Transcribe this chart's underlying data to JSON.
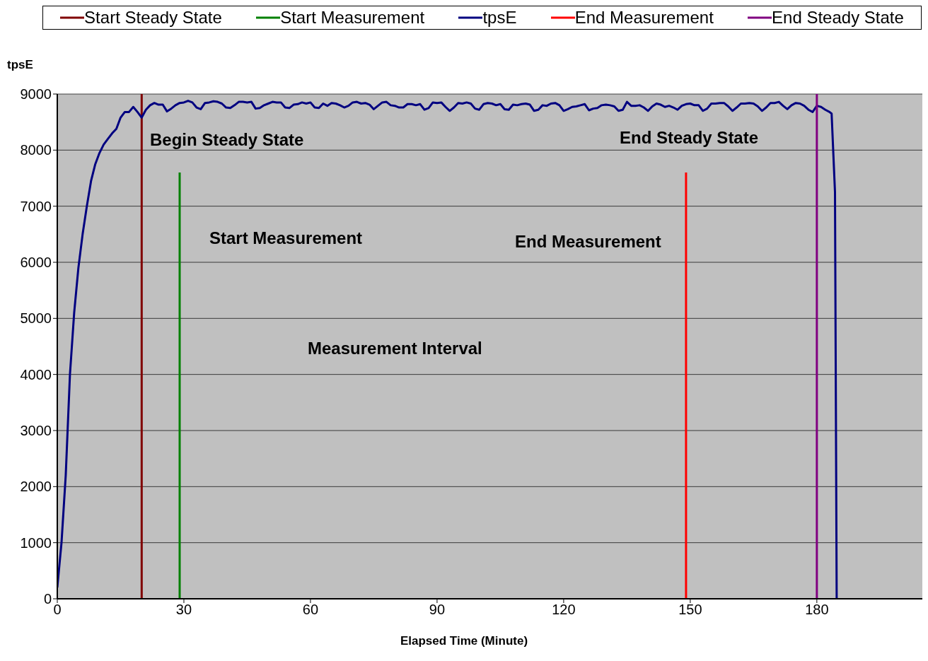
{
  "chart_data": {
    "type": "line",
    "xlabel": "Elapsed Time (Minute)",
    "ylabel": "tpsE",
    "xlim": [
      0,
      205
    ],
    "xticks": [
      0,
      30,
      60,
      90,
      120,
      150,
      180
    ],
    "ylim": [
      0,
      9000
    ],
    "yticks": [
      0,
      1000,
      2000,
      3000,
      4000,
      5000,
      6000,
      7000,
      8000,
      9000
    ],
    "grid": "y",
    "legend": "top",
    "marker": "none",
    "line_style": "solid",
    "series": [
      {
        "name": "Start Steady State",
        "color": "#800000",
        "x": [
          20,
          20
        ],
        "values": [
          0,
          9000
        ]
      },
      {
        "name": "Start Measurement",
        "color": "#008000",
        "x": [
          29,
          29
        ],
        "values": [
          0,
          7600
        ]
      },
      {
        "name": "tpsE",
        "color": "#000080",
        "x": [
          0,
          1,
          2,
          3,
          4,
          5,
          6,
          7,
          8,
          9,
          10,
          11,
          12,
          13,
          14,
          15,
          16,
          17,
          18,
          19,
          20,
          21,
          22,
          23,
          24,
          25,
          26,
          27,
          28,
          29,
          30,
          31,
          32,
          33,
          34,
          35,
          36,
          37,
          38,
          39,
          40,
          41,
          42,
          43,
          44,
          45,
          46,
          47,
          48,
          49,
          50,
          51,
          52,
          53,
          54,
          55,
          56,
          57,
          58,
          59,
          60,
          61,
          62,
          63,
          64,
          65,
          66,
          67,
          68,
          69,
          70,
          71,
          72,
          73,
          74,
          75,
          76,
          77,
          78,
          79,
          80,
          81,
          82,
          83,
          84,
          85,
          86,
          87,
          88,
          89,
          90,
          91,
          92,
          93,
          94,
          95,
          96,
          97,
          98,
          99,
          100,
          101,
          102,
          103,
          104,
          105,
          106,
          107,
          108,
          109,
          110,
          111,
          112,
          113,
          114,
          115,
          116,
          117,
          118,
          119,
          120,
          121,
          122,
          123,
          124,
          125,
          126,
          127,
          128,
          129,
          130,
          131,
          132,
          133,
          134,
          135,
          136,
          137,
          138,
          139,
          140,
          141,
          142,
          143,
          144,
          145,
          146,
          147,
          148,
          149,
          150,
          151,
          152,
          153,
          154,
          155,
          156,
          157,
          158,
          159,
          160,
          161,
          162,
          163,
          164,
          165,
          166,
          167,
          168,
          169,
          170,
          171,
          172,
          173,
          174,
          175,
          176,
          177,
          178,
          179,
          180,
          181,
          182,
          183,
          183.5,
          184.3,
          184.7
        ],
        "values": [
          200,
          1000,
          2200,
          4000,
          5100,
          5900,
          6500,
          7000,
          7450,
          7750,
          7950,
          8100,
          8200,
          8300,
          8380,
          8580,
          8680,
          8680,
          8770,
          8680,
          8580,
          8720,
          8800,
          8840,
          8810,
          8810,
          8690,
          8740,
          8800,
          8840,
          8850,
          8880,
          8850,
          8760,
          8730,
          8840,
          8850,
          8870,
          8860,
          8830,
          8760,
          8750,
          8800,
          8860,
          8860,
          8850,
          8860,
          8740,
          8750,
          8800,
          8830,
          8860,
          8850,
          8850,
          8760,
          8750,
          8810,
          8820,
          8850,
          8830,
          8850,
          8760,
          8750,
          8830,
          8790,
          8840,
          8830,
          8800,
          8760,
          8790,
          8850,
          8860,
          8830,
          8840,
          8810,
          8730,
          8790,
          8850,
          8860,
          8800,
          8790,
          8760,
          8760,
          8820,
          8820,
          8800,
          8820,
          8720,
          8750,
          8850,
          8840,
          8850,
          8770,
          8700,
          8760,
          8840,
          8830,
          8850,
          8830,
          8740,
          8720,
          8820,
          8840,
          8830,
          8800,
          8820,
          8730,
          8720,
          8810,
          8800,
          8820,
          8830,
          8810,
          8700,
          8720,
          8800,
          8790,
          8830,
          8840,
          8800,
          8700,
          8730,
          8770,
          8780,
          8800,
          8820,
          8710,
          8740,
          8750,
          8800,
          8810,
          8800,
          8780,
          8700,
          8720,
          8860,
          8790,
          8790,
          8800,
          8760,
          8700,
          8780,
          8830,
          8810,
          8770,
          8790,
          8760,
          8720,
          8790,
          8820,
          8830,
          8800,
          8800,
          8700,
          8740,
          8830,
          8830,
          8840,
          8840,
          8780,
          8700,
          8760,
          8830,
          8830,
          8840,
          8830,
          8780,
          8700,
          8760,
          8840,
          8840,
          8860,
          8790,
          8730,
          8800,
          8840,
          8830,
          8790,
          8720,
          8680,
          8790,
          8770,
          8720,
          8680,
          8650,
          7250,
          0
        ]
      },
      {
        "name": "End Measurement",
        "color": "#ff0000",
        "x": [
          149,
          149
        ],
        "values": [
          0,
          7600
        ]
      },
      {
        "name": "End Steady State",
        "color": "#800080",
        "x": [
          180,
          180
        ],
        "values": [
          0,
          9000
        ]
      }
    ],
    "annotations": [
      "Begin Steady State",
      "End Steady State",
      "Start Measurement",
      "End Measurement",
      "Measurement Interval"
    ]
  }
}
